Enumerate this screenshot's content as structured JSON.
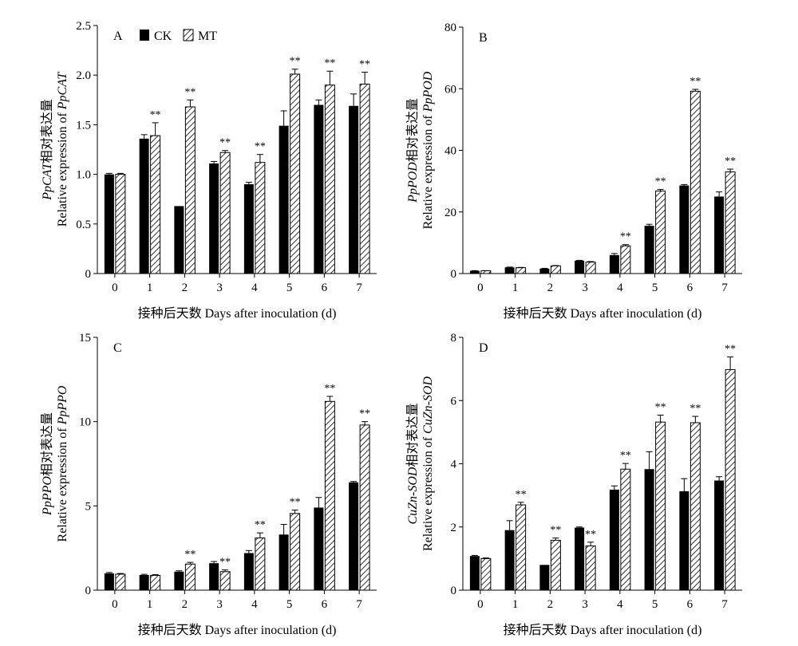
{
  "legend": {
    "ck_label": "CK",
    "mt_label": "MT"
  },
  "chart_data": [
    {
      "panel": "A",
      "type": "bar",
      "categories": [
        "0",
        "1",
        "2",
        "3",
        "4",
        "5",
        "6",
        "7"
      ],
      "ylabel_gene": "PpCAT",
      "ylabel_cn": "相对表达量",
      "ylabel_en": "Relative expression of ",
      "ylabel_gene2": "PpCAT",
      "xlabel": "接种后天数 Days after inoculation (d)",
      "ylim": [
        0,
        2.5
      ],
      "yticks": [
        0,
        0.5,
        1.0,
        1.5,
        2.0,
        2.5
      ],
      "ytick_labels": [
        "0",
        "0.5",
        "1.0",
        "1.5",
        "2.0",
        "2.5"
      ],
      "series": [
        {
          "name": "CK",
          "values": [
            1.0,
            1.36,
            0.68,
            1.11,
            0.9,
            1.49,
            1.7,
            1.69
          ],
          "errors": [
            0.01,
            0.04,
            0.0,
            0.02,
            0.02,
            0.15,
            0.05,
            0.12
          ]
        },
        {
          "name": "MT",
          "values": [
            1.0,
            1.39,
            1.68,
            1.22,
            1.12,
            2.01,
            1.9,
            1.91
          ],
          "errors": [
            0.01,
            0.13,
            0.07,
            0.02,
            0.08,
            0.05,
            0.14,
            0.12
          ]
        }
      ],
      "significance": [
        "",
        "**",
        "**",
        "**",
        "**",
        "**",
        "**",
        "**"
      ]
    },
    {
      "panel": "B",
      "type": "bar",
      "categories": [
        "0",
        "1",
        "2",
        "3",
        "4",
        "5",
        "6",
        "7"
      ],
      "ylabel_gene": "PpPOD",
      "ylabel_cn": "相对表达量",
      "ylabel_en": "Relative expression of ",
      "ylabel_gene2": "PpPOD",
      "xlabel": "接种后天数 Days after inoculation (d)",
      "ylim": [
        0,
        80
      ],
      "yticks": [
        0,
        20,
        40,
        60,
        80
      ],
      "ytick_labels": [
        "0",
        "20",
        "40",
        "60",
        "80"
      ],
      "series": [
        {
          "name": "CK",
          "values": [
            0.9,
            2.0,
            1.6,
            4.2,
            6.0,
            15.5,
            28.6,
            25.0
          ],
          "errors": [
            0.05,
            0.1,
            0.1,
            0.1,
            0.5,
            0.5,
            0.3,
            1.5
          ]
        },
        {
          "name": "MT",
          "values": [
            0.9,
            1.9,
            2.5,
            3.7,
            9.0,
            26.8,
            59.2,
            33.0
          ],
          "errors": [
            0.05,
            0.1,
            0.1,
            0.2,
            0.4,
            0.5,
            0.6,
            0.9
          ]
        }
      ],
      "significance": [
        "",
        "",
        "",
        "",
        "**",
        "**",
        "**",
        "**"
      ]
    },
    {
      "panel": "C",
      "type": "bar",
      "categories": [
        "0",
        "1",
        "2",
        "3",
        "4",
        "5",
        "6",
        "7"
      ],
      "ylabel_gene": "PpPPO",
      "ylabel_cn": "相对表达量",
      "ylabel_en": "Relative expression of ",
      "ylabel_gene2": "PpPPO",
      "xlabel": "接种后天数 Days after inoculation (d)",
      "ylim": [
        0,
        15
      ],
      "yticks": [
        0,
        5,
        10,
        15
      ],
      "ytick_labels": [
        "0",
        "5",
        "10",
        "15"
      ],
      "series": [
        {
          "name": "CK",
          "values": [
            1.0,
            0.9,
            1.1,
            1.6,
            2.2,
            3.3,
            4.9,
            6.4
          ],
          "errors": [
            0.05,
            0.04,
            0.05,
            0.1,
            0.15,
            0.6,
            0.6,
            0.05
          ]
        },
        {
          "name": "MT",
          "values": [
            0.95,
            0.88,
            1.55,
            1.1,
            3.1,
            4.55,
            11.2,
            9.8
          ],
          "errors": [
            0.04,
            0.04,
            0.1,
            0.1,
            0.3,
            0.2,
            0.3,
            0.2
          ]
        }
      ],
      "significance": [
        "",
        "",
        "**",
        "**",
        "**",
        "**",
        "**",
        "**"
      ]
    },
    {
      "panel": "D",
      "type": "bar",
      "categories": [
        "0",
        "1",
        "2",
        "3",
        "4",
        "5",
        "6",
        "7"
      ],
      "ylabel_gene": "CuZn-SOD",
      "ylabel_cn": "相对表达量",
      "ylabel_en": "Relative expression of ",
      "ylabel_gene2": "CuZn-SOD",
      "xlabel": "接种后天数 Days after inoculation (d)",
      "ylim": [
        0,
        8
      ],
      "yticks": [
        0,
        2,
        4,
        6,
        8
      ],
      "ytick_labels": [
        "0",
        "2",
        "4",
        "6",
        "8"
      ],
      "series": [
        {
          "name": "CK",
          "values": [
            1.08,
            1.9,
            0.8,
            1.98,
            3.18,
            3.83,
            3.13,
            3.47
          ],
          "errors": [
            0.02,
            0.3,
            0.0,
            0.02,
            0.12,
            0.55,
            0.4,
            0.12
          ]
        },
        {
          "name": "MT",
          "values": [
            1.0,
            2.7,
            1.58,
            1.4,
            3.83,
            5.32,
            5.3,
            6.98
          ],
          "errors": [
            0.02,
            0.08,
            0.07,
            0.12,
            0.18,
            0.22,
            0.2,
            0.4
          ]
        }
      ],
      "significance": [
        "",
        "**",
        "**",
        "**",
        "**",
        "**",
        "**",
        "**"
      ]
    }
  ]
}
